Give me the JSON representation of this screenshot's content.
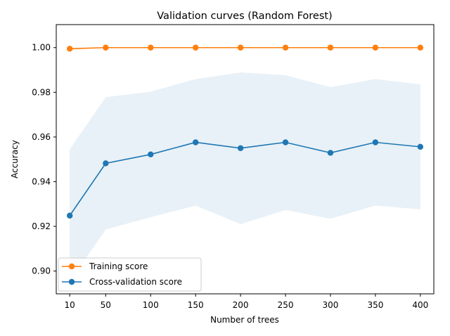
{
  "chart_data": {
    "type": "line",
    "title": "Validation curves (Random Forest)",
    "xlabel": "Number of trees",
    "ylabel": "Accuracy",
    "x": [
      10,
      50,
      100,
      150,
      200,
      250,
      300,
      350,
      400
    ],
    "x_ticks": [
      "10",
      "50",
      "100",
      "150",
      "200",
      "250",
      "300",
      "350",
      "400"
    ],
    "xlim": [
      -5,
      415
    ],
    "ylim": [
      0.8898,
      1.0103
    ],
    "y_ticks": [
      0.9,
      0.92,
      0.94,
      0.96,
      0.98,
      1.0
    ],
    "y_tick_labels": [
      "0.90",
      "0.92",
      "0.94",
      "0.96",
      "0.98",
      "1.00"
    ],
    "grid": false,
    "legend_position": "lower-left",
    "series": [
      {
        "name": "Training score",
        "color": "#ff7f0e",
        "marker": "circle",
        "values": [
          0.9995,
          1.0,
          1.0,
          1.0,
          1.0,
          1.0,
          1.0,
          1.0,
          1.0
        ],
        "band_upper": [
          1.0,
          1.0,
          1.0,
          1.0,
          1.0,
          1.0,
          1.0,
          1.0,
          1.0
        ],
        "band_lower": [
          0.999,
          1.0,
          1.0,
          1.0,
          1.0,
          1.0,
          1.0,
          1.0,
          1.0
        ]
      },
      {
        "name": "Cross-validation score",
        "color": "#1f77b4",
        "marker": "circle",
        "values": [
          0.9248,
          0.9482,
          0.9522,
          0.9576,
          0.955,
          0.9576,
          0.9529,
          0.9576,
          0.9556
        ],
        "band_upper": [
          0.9545,
          0.9778,
          0.9803,
          0.9859,
          0.9889,
          0.9877,
          0.9823,
          0.9859,
          0.9835
        ],
        "band_lower": [
          0.8952,
          0.9186,
          0.9241,
          0.9293,
          0.921,
          0.9273,
          0.9234,
          0.9293,
          0.9276
        ],
        "band_color": "#1f77b4",
        "band_opacity": 0.1
      }
    ]
  }
}
